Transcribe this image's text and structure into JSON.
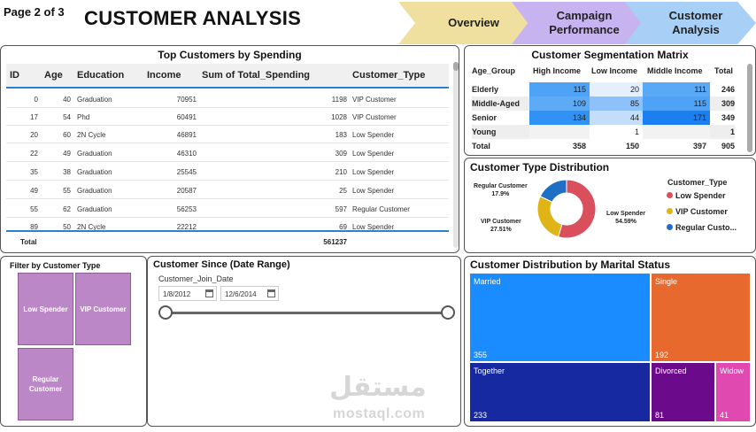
{
  "header": {
    "page_label": "Page 2 of 3",
    "title": "CUSTOMER ANALYSIS",
    "nav": [
      {
        "label": "Overview",
        "color": "#efe0a0"
      },
      {
        "label": "Campaign Performance",
        "color": "#c7b3f0"
      },
      {
        "label": "Customer Analysis",
        "color": "#a8cff5"
      }
    ]
  },
  "top_customers": {
    "title": "Top Customers by Spending",
    "columns": [
      "ID",
      "Age",
      "Education",
      "Income",
      "Sum of Total_Spending",
      "Customer_Type"
    ],
    "rows": [
      {
        "id": "0",
        "age": "40",
        "education": "Graduation",
        "income": "70951",
        "spending": "1198",
        "type": "VIP Customer"
      },
      {
        "id": "17",
        "age": "54",
        "education": "Phd",
        "income": "60491",
        "spending": "1028",
        "type": "VIP Customer"
      },
      {
        "id": "20",
        "age": "60",
        "education": "2N Cycle",
        "income": "46891",
        "spending": "183",
        "type": "Low Spender"
      },
      {
        "id": "22",
        "age": "49",
        "education": "Graduation",
        "income": "46310",
        "spending": "309",
        "type": "Low Spender"
      },
      {
        "id": "35",
        "age": "38",
        "education": "Graduation",
        "income": "25545",
        "spending": "210",
        "type": "Low Spender"
      },
      {
        "id": "49",
        "age": "55",
        "education": "Graduation",
        "income": "20587",
        "spending": "25",
        "type": "Low Spender"
      },
      {
        "id": "55",
        "age": "62",
        "education": "Graduation",
        "income": "56253",
        "spending": "597",
        "type": "Regular Customer"
      },
      {
        "id": "89",
        "age": "50",
        "education": "2N Cycle",
        "income": "22212",
        "spending": "69",
        "type": "Low Spender"
      }
    ],
    "total_label": "Total",
    "total_value": "561237"
  },
  "matrix": {
    "title": "Customer Segmentation Matrix",
    "columns": [
      "Age_Group",
      "High Income",
      "Low Income",
      "Middle Income",
      "Total"
    ],
    "rows": [
      {
        "label": "Elderly",
        "high": "115",
        "low": "20",
        "mid": "111",
        "total": "246"
      },
      {
        "label": "Middle-Aged",
        "high": "109",
        "low": "85",
        "mid": "115",
        "total": "309"
      },
      {
        "label": "Senior",
        "high": "134",
        "low": "44",
        "mid": "171",
        "total": "349"
      },
      {
        "label": "Young",
        "high": "",
        "low": "1",
        "mid": "",
        "total": "1"
      },
      {
        "label": "Total",
        "high": "358",
        "low": "150",
        "mid": "397",
        "total": "905"
      }
    ]
  },
  "customer_type": {
    "title": "Customer Type Distribution",
    "legend_title": "Customer_Type",
    "legend": [
      {
        "label": "Low Spender",
        "color": "#d9505c"
      },
      {
        "label": "VIP Customer",
        "color": "#e0b416"
      },
      {
        "label": "Regular Custo...",
        "color": "#1f6fc4"
      }
    ],
    "labels": {
      "low_name": "Low Spender",
      "low_pct": "54.59%",
      "vip_name": "VIP Customer",
      "vip_pct": "27.51%",
      "reg_name": "Regular Customer",
      "reg_pct": "17.9%"
    }
  },
  "chart_data": {
    "type": "pie",
    "title": "Customer Type Distribution",
    "categories": [
      "Low Spender",
      "VIP Customer",
      "Regular Customer"
    ],
    "values": [
      54.59,
      27.51,
      17.9
    ],
    "colors": [
      "#d9505c",
      "#e0b416",
      "#1f6fc4"
    ]
  },
  "filter": {
    "title": "Filter by Customer Type",
    "options": [
      "Low Spender",
      "VIP Customer",
      "Regular Customer"
    ]
  },
  "date_range": {
    "title": "Customer Since (Date Range)",
    "field_label": "Customer_Join_Date",
    "start": "1/8/2012",
    "end": "12/6/2014"
  },
  "marital": {
    "title": "Customer Distribution by Marital Status",
    "cells": [
      {
        "name": "Married",
        "value": "355",
        "color": "#1a8cff"
      },
      {
        "name": "Single",
        "value": "192",
        "color": "#e8692e"
      },
      {
        "name": "Together",
        "value": "233",
        "color": "#1629a0"
      },
      {
        "name": "Divorced",
        "value": "81",
        "color": "#6b0a8a"
      },
      {
        "name": "Widow",
        "value": "41",
        "color": "#e04ab0"
      }
    ]
  },
  "watermark": "mostaql.com",
  "watermark_ar": "مستقل"
}
